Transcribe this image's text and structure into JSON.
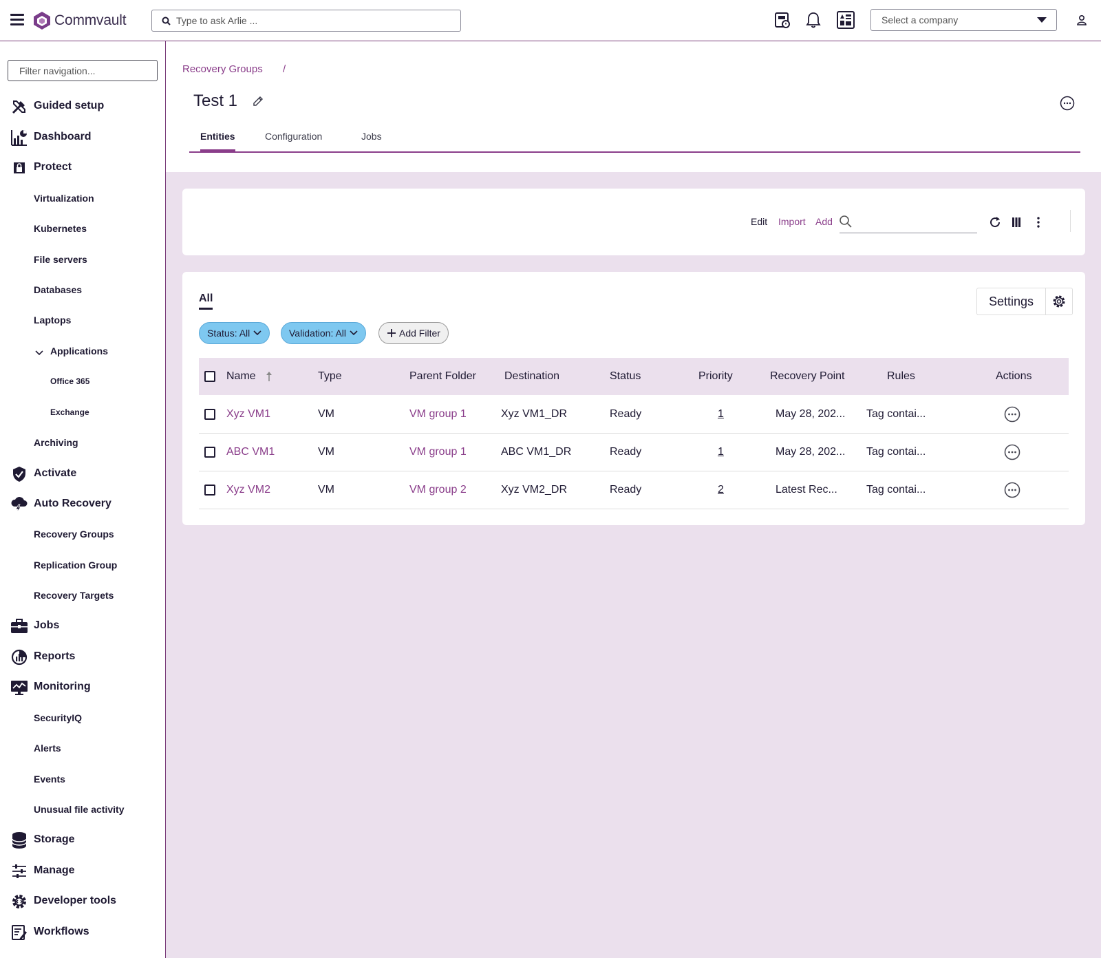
{
  "app": {
    "brand": "Commvault",
    "ask_placeholder": "Type to ask Arlie ...",
    "company_select": "Select a company",
    "accent_color": "#8a3d8a"
  },
  "sidebar": {
    "filter_placeholder": "Filter navigation...",
    "items": [
      {
        "label": "Guided setup",
        "icon": "tools-icon"
      },
      {
        "label": "Dashboard",
        "icon": "dashboard-icon"
      },
      {
        "label": "Protect",
        "icon": "shield-lock-icon"
      },
      {
        "label": "Virtualization"
      },
      {
        "label": "Kubernetes"
      },
      {
        "label": "File servers"
      },
      {
        "label": "Databases"
      },
      {
        "label": "Laptops"
      },
      {
        "label": "Applications",
        "icon": "chevron-down-icon"
      },
      {
        "label": "Office 365"
      },
      {
        "label": "Exchange"
      },
      {
        "label": "Archiving"
      },
      {
        "label": "Activate",
        "icon": "shield-check-icon"
      },
      {
        "label": "Auto Recovery",
        "icon": "cloud-bolt-icon"
      },
      {
        "label": "Recovery Groups"
      },
      {
        "label": "Replication Group"
      },
      {
        "label": "Recovery Targets"
      },
      {
        "label": "Jobs",
        "icon": "briefcase-icon"
      },
      {
        "label": "Reports",
        "icon": "reports-icon"
      },
      {
        "label": "Monitoring",
        "icon": "monitor-icon"
      },
      {
        "label": "SecurityIQ"
      },
      {
        "label": "Alerts"
      },
      {
        "label": "Events"
      },
      {
        "label": "Unusual file activity"
      },
      {
        "label": "Storage",
        "icon": "database-icon"
      },
      {
        "label": "Manage",
        "icon": "sliders-icon"
      },
      {
        "label": "Developer tools",
        "icon": "gear-code-icon"
      },
      {
        "label": "Workflows",
        "icon": "workflow-icon"
      }
    ]
  },
  "page": {
    "breadcrumb": "Recovery Groups",
    "breadcrumb_sep": "/",
    "title": "Test 1",
    "tabs": [
      "Entities",
      "Configuration",
      "Jobs"
    ]
  },
  "toolbar": {
    "edit": "Edit",
    "import": "Import",
    "add": "Add"
  },
  "grid": {
    "view_tab": "All",
    "settings_label": "Settings",
    "filters": [
      "Status: All",
      "Validation: All"
    ],
    "add_filter": "Add Filter",
    "columns": [
      "Name",
      "Type",
      "Parent Folder",
      "Destination",
      "Status",
      "Priority",
      "Recovery Point",
      "Rules",
      "Actions"
    ],
    "rows": [
      {
        "name": "Xyz VM1",
        "type": "VM",
        "parent_folder": "VM group 1",
        "destination": "Xyz VM1_DR",
        "status": "Ready",
        "priority": "1",
        "recovery_point": "May 28, 202...",
        "rules": "Tag contai..."
      },
      {
        "name": "ABC VM1",
        "type": "VM",
        "parent_folder": "VM group 1",
        "destination": "ABC VM1_DR",
        "status": "Ready",
        "priority": "1",
        "recovery_point": "May 28, 202...",
        "rules": "Tag contai..."
      },
      {
        "name": "Xyz VM2",
        "type": "VM",
        "parent_folder": "VM group 2",
        "destination": "Xyz VM2_DR",
        "status": "Ready",
        "priority": "2",
        "recovery_point": "Latest Rec...",
        "rules": "Tag contai..."
      }
    ]
  }
}
